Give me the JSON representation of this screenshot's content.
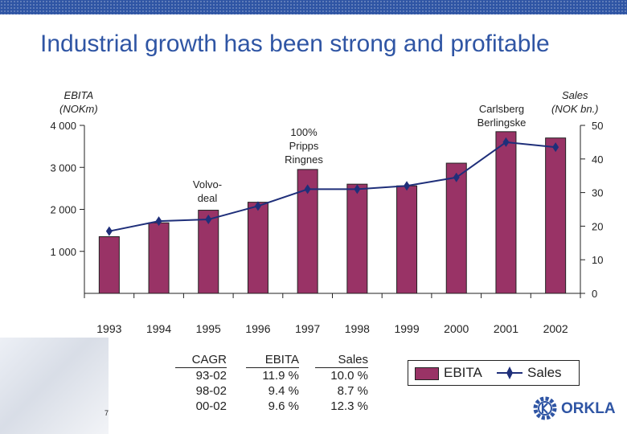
{
  "slide": {
    "title": "Industrial growth has been strong and profitable",
    "page_number": "7",
    "accent_color": "#2f55a4"
  },
  "chart_data": {
    "type": "bar+line",
    "categories": [
      "1993",
      "1994",
      "1995",
      "1996",
      "1997",
      "1998",
      "1999",
      "2000",
      "2001",
      "2002"
    ],
    "series": [
      {
        "name": "EBITA",
        "type": "bar",
        "axis": "left",
        "color": "#993366",
        "values": [
          1350,
          1680,
          1980,
          2170,
          2950,
          2600,
          2560,
          3100,
          3850,
          3700
        ]
      },
      {
        "name": "Sales",
        "type": "line",
        "axis": "right",
        "color": "#1f2f7a",
        "values": [
          18.5,
          21.5,
          22,
          26,
          31,
          31,
          32,
          34.5,
          45,
          43.5
        ]
      }
    ],
    "y_left": {
      "title_line1": "EBITA",
      "title_line2": "(NOKm)",
      "range": [
        0,
        4000
      ],
      "ticks": [
        1000,
        2000,
        3000,
        4000
      ],
      "tick_labels": [
        "1 000",
        "2 000",
        "3 000",
        "4 000"
      ]
    },
    "y_right": {
      "title_line1": "Sales",
      "title_line2": "(NOK bn.)",
      "range": [
        0,
        50
      ],
      "ticks": [
        0,
        10,
        20,
        30,
        40,
        50
      ],
      "tick_labels": [
        "0",
        "10",
        "20",
        "30",
        "40",
        "50"
      ]
    },
    "annotations": [
      {
        "lines": [
          "100%",
          "Pripps",
          "Ringnes"
        ]
      },
      {
        "lines": [
          "Volvo-",
          "deal"
        ]
      },
      {
        "lines": [
          "Carlsberg",
          "Berlingske"
        ]
      }
    ],
    "grid": false,
    "legend": {
      "position": "bottom-right",
      "ebita_label": "EBITA",
      "sales_label": "Sales"
    }
  },
  "cagr_table": {
    "headers": [
      "CAGR",
      "EBITA",
      "Sales"
    ],
    "rows": [
      [
        "93-02",
        "11.9 %",
        "10.0 %"
      ],
      [
        "98-02",
        "9.4 %",
        "8.7 %"
      ],
      [
        "00-02",
        "9.6 %",
        "12.3 %"
      ]
    ]
  },
  "logo": {
    "text": "ORKLA",
    "icon": "orkla-gear-icon"
  }
}
